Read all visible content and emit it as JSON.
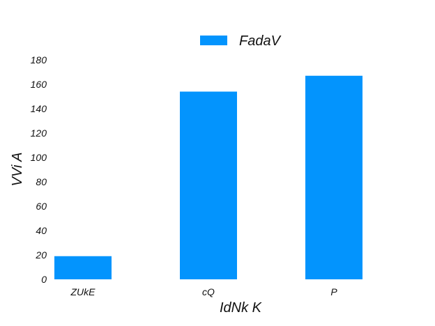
{
  "chart_data": {
    "type": "bar",
    "categories": [
      "ZUkE",
      "cQ",
      "P"
    ],
    "series": [
      {
        "name": "FadaV",
        "values": [
          19,
          154,
          167
        ],
        "color": "#0394fd"
      }
    ],
    "xlabel": "IdNk K",
    "ylabel": "VVi A",
    "ylim": [
      0,
      180
    ],
    "yticks": [
      0,
      20,
      40,
      60,
      80,
      100,
      120,
      140,
      160,
      180
    ],
    "grid": false,
    "legend": "top-center"
  }
}
